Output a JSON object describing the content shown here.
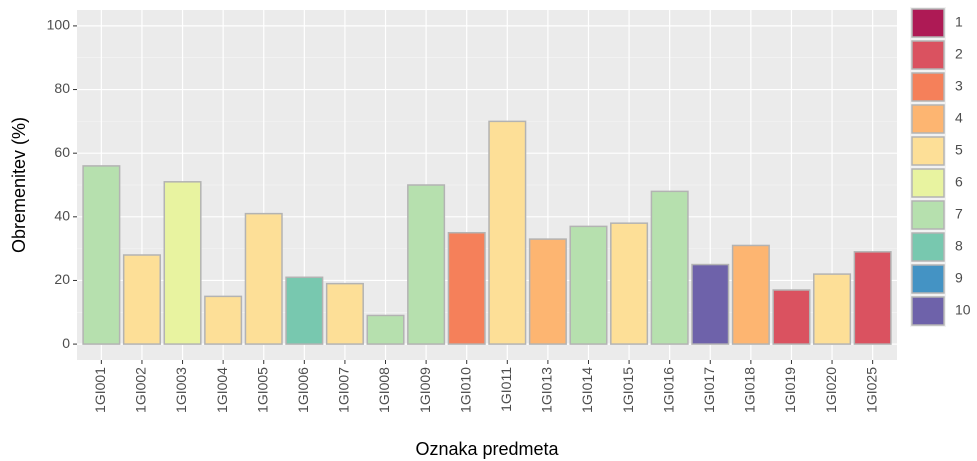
{
  "chart_data": {
    "type": "bar",
    "x_label": "Oznaka predmeta",
    "y_label": "Obremenitev (%)",
    "categories": [
      "1GI001",
      "1GI002",
      "1GI003",
      "1GI004",
      "1GI005",
      "1GI006",
      "1GI007",
      "1GI008",
      "1GI009",
      "1GI010",
      "1GI011",
      "1GI013",
      "1GI014",
      "1GI015",
      "1GI016",
      "1GI017",
      "1GI018",
      "1GI019",
      "1GI020",
      "1GI025"
    ],
    "values": [
      56,
      28,
      51,
      15,
      41,
      21,
      19,
      9,
      50,
      35,
      70,
      33,
      37,
      38,
      48,
      25,
      31,
      17,
      22,
      29
    ],
    "groups": [
      "7",
      "5",
      "6",
      "5",
      "5",
      "8",
      "5",
      "7",
      "7",
      "3",
      "5",
      "4",
      "7",
      "5",
      "7",
      "10",
      "4",
      "2",
      "5",
      "2"
    ],
    "legend": [
      {
        "name": "1",
        "color": "#ae1a55"
      },
      {
        "name": "2",
        "color": "#da5260"
      },
      {
        "name": "3",
        "color": "#f5805a"
      },
      {
        "name": "4",
        "color": "#fdb571"
      },
      {
        "name": "5",
        "color": "#fddf97"
      },
      {
        "name": "6",
        "color": "#e8f3a0"
      },
      {
        "name": "7",
        "color": "#b6e0ae"
      },
      {
        "name": "8",
        "color": "#78c8af"
      },
      {
        "name": "9",
        "color": "#4493c4"
      },
      {
        "name": "10",
        "color": "#6e62aa"
      }
    ],
    "ylim": [
      -5,
      105
    ],
    "yticks": [
      0,
      20,
      40,
      60,
      80,
      100
    ],
    "grid": true
  }
}
